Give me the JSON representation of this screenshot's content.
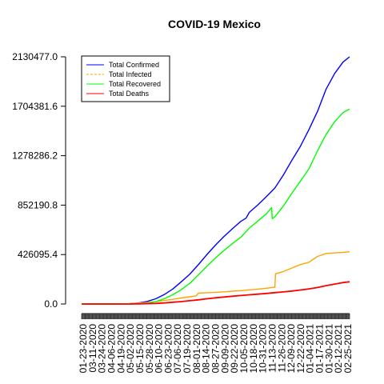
{
  "chart_data": {
    "type": "line",
    "title": "COVID-19 Mexico",
    "xlabel": "",
    "ylabel": "",
    "ylim": [
      0.0,
      2130477.0
    ],
    "y_ticks": [
      "0.0",
      "426095.4",
      "852190.8",
      "1278286.2",
      "1704381.6",
      "2130477.0"
    ],
    "y_tick_values": [
      0,
      426095.4,
      852190.8,
      1278286.2,
      1704381.6,
      2130477.0
    ],
    "x_range": [
      "2020-01-23",
      "2021-03-07"
    ],
    "x_tick_labels": [
      "01-23-2020",
      "03-11-2020",
      "03-24-2020",
      "04-06-2020",
      "04-19-2020",
      "05-02-2020",
      "05-15-2020",
      "05-28-2020",
      "06-10-2020",
      "06-23-2020",
      "07-06-2020",
      "07-19-2020",
      "08-01-2020",
      "08-14-2020",
      "08-27-2020",
      "09-09-2020",
      "09-22-2020",
      "10-05-2020",
      "10-18-2020",
      "10-31-2020",
      "11-13-2020",
      "11-26-2020",
      "12-09-2020",
      "12-22-2020",
      "01-04-2021",
      "01-17-2021",
      "01-30-2021",
      "02-12-2021",
      "02-25-2021"
    ],
    "legend_position": "top-left",
    "series": [
      {
        "name": "Total Confirmed",
        "color": "#0000ff",
        "dash": "solid",
        "x": [
          "2020-01-23",
          "2020-03-11",
          "2020-03-24",
          "2020-04-06",
          "2020-04-19",
          "2020-05-02",
          "2020-05-15",
          "2020-05-28",
          "2020-06-10",
          "2020-06-23",
          "2020-07-06",
          "2020-07-19",
          "2020-08-01",
          "2020-08-14",
          "2020-08-27",
          "2020-09-09",
          "2020-09-22",
          "2020-09-30",
          "2020-10-05",
          "2020-10-18",
          "2020-10-31",
          "2020-11-13",
          "2020-11-26",
          "2020-12-09",
          "2020-12-22",
          "2021-01-04",
          "2021-01-17",
          "2021-01-30",
          "2021-02-12",
          "2021-02-25",
          "2021-03-07"
        ],
        "values": [
          0,
          10,
          400,
          3100,
          9000,
          22000,
          45000,
          81000,
          129000,
          191000,
          256000,
          338000,
          424000,
          506000,
          580000,
          648000,
          712000,
          740000,
          790000,
          854000,
          925000,
          1000000,
          1113000,
          1240000,
          1360000,
          1504000,
          1660000,
          1850000,
          1985000,
          2085000,
          2130477
        ]
      },
      {
        "name": "Total Infected",
        "color": "#ffa500",
        "dash": "dashed",
        "x": [
          "2020-01-23",
          "2020-03-11",
          "2020-03-24",
          "2020-04-06",
          "2020-04-19",
          "2020-05-02",
          "2020-05-15",
          "2020-05-28",
          "2020-06-10",
          "2020-06-23",
          "2020-07-06",
          "2020-07-16",
          "2020-07-19",
          "2020-08-01",
          "2020-08-14",
          "2020-08-27",
          "2020-09-09",
          "2020-09-22",
          "2020-10-05",
          "2020-10-18",
          "2020-10-31",
          "2020-11-13",
          "2020-11-14",
          "2020-11-26",
          "2020-12-09",
          "2020-12-22",
          "2021-01-04",
          "2021-01-17",
          "2021-01-30",
          "2021-02-12",
          "2021-02-25",
          "2021-03-07"
        ],
        "values": [
          0,
          10,
          380,
          2800,
          7000,
          13000,
          20000,
          30000,
          40000,
          52000,
          62000,
          70000,
          93000,
          97000,
          101000,
          105000,
          110000,
          115000,
          122000,
          128000,
          136000,
          145000,
          260000,
          280000,
          310000,
          340000,
          360000,
          410000,
          435000,
          440000,
          445000,
          450000
        ]
      },
      {
        "name": "Total Recovered",
        "color": "#00ff00",
        "dash": "solid",
        "x": [
          "2020-01-23",
          "2020-03-11",
          "2020-03-24",
          "2020-04-06",
          "2020-04-19",
          "2020-05-02",
          "2020-05-15",
          "2020-05-28",
          "2020-06-10",
          "2020-06-23",
          "2020-07-06",
          "2020-07-19",
          "2020-08-01",
          "2020-08-14",
          "2020-08-27",
          "2020-09-09",
          "2020-09-22",
          "2020-10-05",
          "2020-10-18",
          "2020-10-31",
          "2020-11-08",
          "2020-11-09",
          "2020-11-13",
          "2020-11-26",
          "2020-12-09",
          "2020-12-22",
          "2021-01-04",
          "2021-01-17",
          "2021-01-30",
          "2021-02-12",
          "2021-02-25",
          "2021-03-07"
        ],
        "values": [
          0,
          0,
          0,
          300,
          1500,
          6000,
          20000,
          45000,
          80000,
          123000,
          178000,
          250000,
          325000,
          395000,
          460000,
          520000,
          575000,
          655000,
          715000,
          778000,
          830000,
          735000,
          752000,
          845000,
          955000,
          1060000,
          1165000,
          1320000,
          1460000,
          1570000,
          1650000,
          1680000
        ]
      },
      {
        "name": "Total Deaths",
        "color": "#ff0000",
        "dash": "solid",
        "x": [
          "2020-01-23",
          "2020-03-11",
          "2020-03-24",
          "2020-04-06",
          "2020-04-19",
          "2020-05-02",
          "2020-05-15",
          "2020-05-28",
          "2020-06-10",
          "2020-06-23",
          "2020-07-06",
          "2020-07-19",
          "2020-08-01",
          "2020-08-14",
          "2020-08-27",
          "2020-09-09",
          "2020-09-22",
          "2020-10-05",
          "2020-10-18",
          "2020-10-31",
          "2020-11-13",
          "2020-11-26",
          "2020-12-09",
          "2020-12-22",
          "2021-01-04",
          "2021-01-17",
          "2021-01-30",
          "2021-02-12",
          "2021-02-25",
          "2021-03-07"
        ],
        "values": [
          0,
          0,
          5,
          150,
          800,
          2500,
          5000,
          9000,
          15000,
          21000,
          28000,
          36000,
          45000,
          53000,
          60000,
          67000,
          73000,
          79000,
          85000,
          91000,
          98000,
          104000,
          112000,
          121000,
          130000,
          142000,
          158000,
          172000,
          185000,
          192000
        ]
      }
    ]
  }
}
